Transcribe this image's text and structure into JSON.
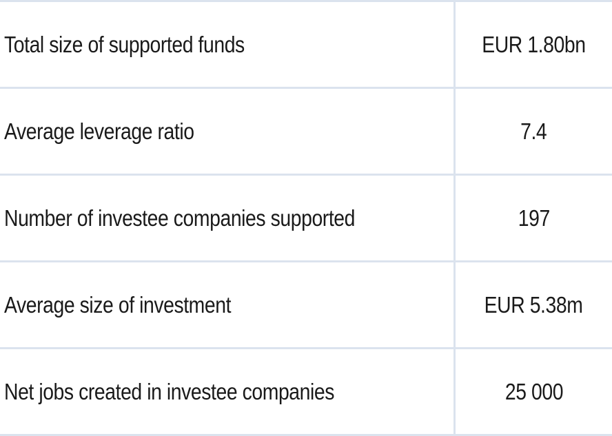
{
  "rows": [
    {
      "label": "Total size of supported funds",
      "value": "EUR 1.80bn"
    },
    {
      "label": "Average leverage ratio",
      "value": "7.4"
    },
    {
      "label": "Number of investee companies supported",
      "value": "197"
    },
    {
      "label": "Average size of investment",
      "value": "EUR 5.38m"
    },
    {
      "label": "Net jobs created in investee companies",
      "value": "25 000"
    }
  ]
}
